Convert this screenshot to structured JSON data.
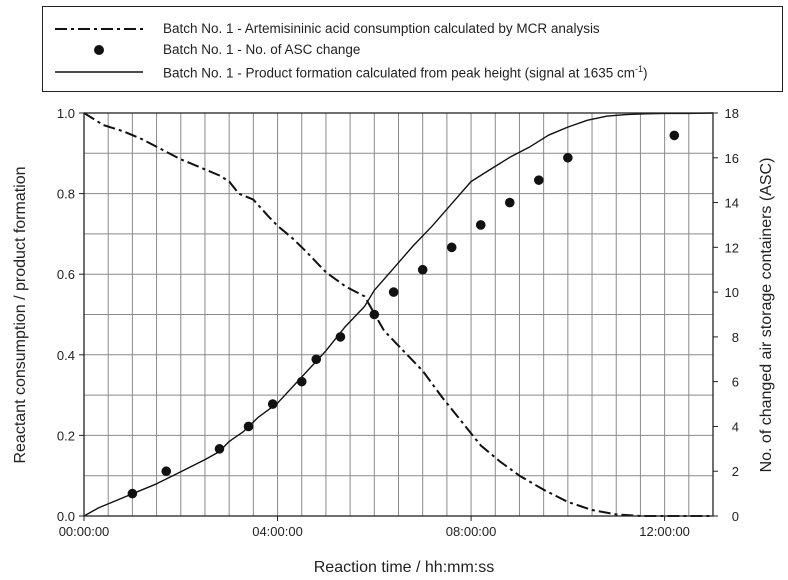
{
  "chart_data": {
    "type": "line",
    "xlabel": "Reaction time / hh:mm:ss",
    "ylabel_left": "Reactant consumption / product formation",
    "ylabel_right": "No. of changed air storage containers (ASC)",
    "xlim_hours": [
      0,
      13
    ],
    "ylim_left": [
      0,
      1.0
    ],
    "ylim_right": [
      0,
      18
    ],
    "x_ticks": [
      {
        "hours": 0,
        "label": "00:00:00"
      },
      {
        "hours": 4,
        "label": "04:00:00"
      },
      {
        "hours": 8,
        "label": "08:00:00"
      },
      {
        "hours": 12,
        "label": "12:00:00"
      }
    ],
    "y_left_ticks": [
      "0.0",
      "0.2",
      "0.4",
      "0.6",
      "0.8",
      "1.0"
    ],
    "y_right_ticks": [
      "0",
      "2",
      "4",
      "6",
      "8",
      "10",
      "12",
      "14",
      "16",
      "18"
    ],
    "grid": true,
    "legend_position": "top",
    "legend": [
      {
        "text": "Batch No. 1 - Artemisininic acid consumption calculated by MCR analysis",
        "style": "dash-dot"
      },
      {
        "text": "Batch No. 1 - No. of ASC change",
        "style": "marker"
      },
      {
        "text": "Batch No. 1 - Product formation calculated from peak height (signal at 1635 cm",
        "sup": "-1",
        "tail": ")",
        "style": "solid"
      }
    ],
    "series": [
      {
        "name": "Batch No. 1 - Artemisininic acid consumption calculated by MCR analysis",
        "axis": "left",
        "style": "dash-dot",
        "x_hours": [
          0,
          0.2,
          0.4,
          0.8,
          1.2,
          1.6,
          2.0,
          2.5,
          2.8,
          3.0,
          3.2,
          3.5,
          3.8,
          4.0,
          4.3,
          4.6,
          5.0,
          5.4,
          5.8,
          6.2,
          6.6,
          7.0,
          7.4,
          7.8,
          8.2,
          8.6,
          9.0,
          9.5,
          10.0,
          10.5,
          11.0,
          11.5,
          12.0,
          12.5,
          13.0
        ],
        "values": [
          1.0,
          0.985,
          0.97,
          0.955,
          0.935,
          0.91,
          0.885,
          0.86,
          0.845,
          0.83,
          0.8,
          0.785,
          0.745,
          0.72,
          0.69,
          0.655,
          0.605,
          0.57,
          0.545,
          0.46,
          0.41,
          0.36,
          0.295,
          0.235,
          0.175,
          0.135,
          0.1,
          0.065,
          0.035,
          0.015,
          0.004,
          0.0,
          0.0,
          0.0,
          0.0
        ]
      },
      {
        "name": "Batch No. 1 - Product formation calculated from peak height (signal at 1635 cm-1)",
        "axis": "left",
        "style": "solid",
        "x_hours": [
          0,
          0.3,
          0.6,
          1.0,
          1.5,
          2.0,
          2.5,
          2.8,
          3.0,
          3.3,
          3.6,
          4.0,
          4.5,
          5.0,
          5.4,
          5.8,
          6.0,
          6.4,
          6.8,
          7.2,
          7.6,
          8.0,
          8.4,
          8.8,
          9.2,
          9.6,
          10.0,
          10.4,
          10.8,
          11.2,
          11.6,
          12.0,
          12.5,
          13.0
        ],
        "values": [
          0.0,
          0.02,
          0.035,
          0.055,
          0.08,
          0.11,
          0.14,
          0.16,
          0.185,
          0.21,
          0.245,
          0.28,
          0.345,
          0.41,
          0.47,
          0.52,
          0.56,
          0.615,
          0.67,
          0.72,
          0.775,
          0.83,
          0.86,
          0.89,
          0.915,
          0.945,
          0.965,
          0.982,
          0.992,
          0.996,
          0.998,
          0.999,
          0.999,
          1.0
        ]
      },
      {
        "name": "Batch No. 1 - No. of ASC change",
        "axis": "right",
        "style": "marker",
        "x_hours": [
          1.0,
          1.7,
          2.8,
          3.4,
          3.9,
          4.5,
          4.8,
          5.3,
          6.0,
          6.4,
          7.0,
          7.6,
          8.2,
          8.8,
          9.4,
          10.0,
          12.2
        ],
        "values": [
          1,
          2,
          3,
          4,
          5,
          6,
          7,
          8,
          9,
          10,
          11,
          12,
          13,
          14,
          15,
          16,
          17
        ]
      }
    ]
  }
}
